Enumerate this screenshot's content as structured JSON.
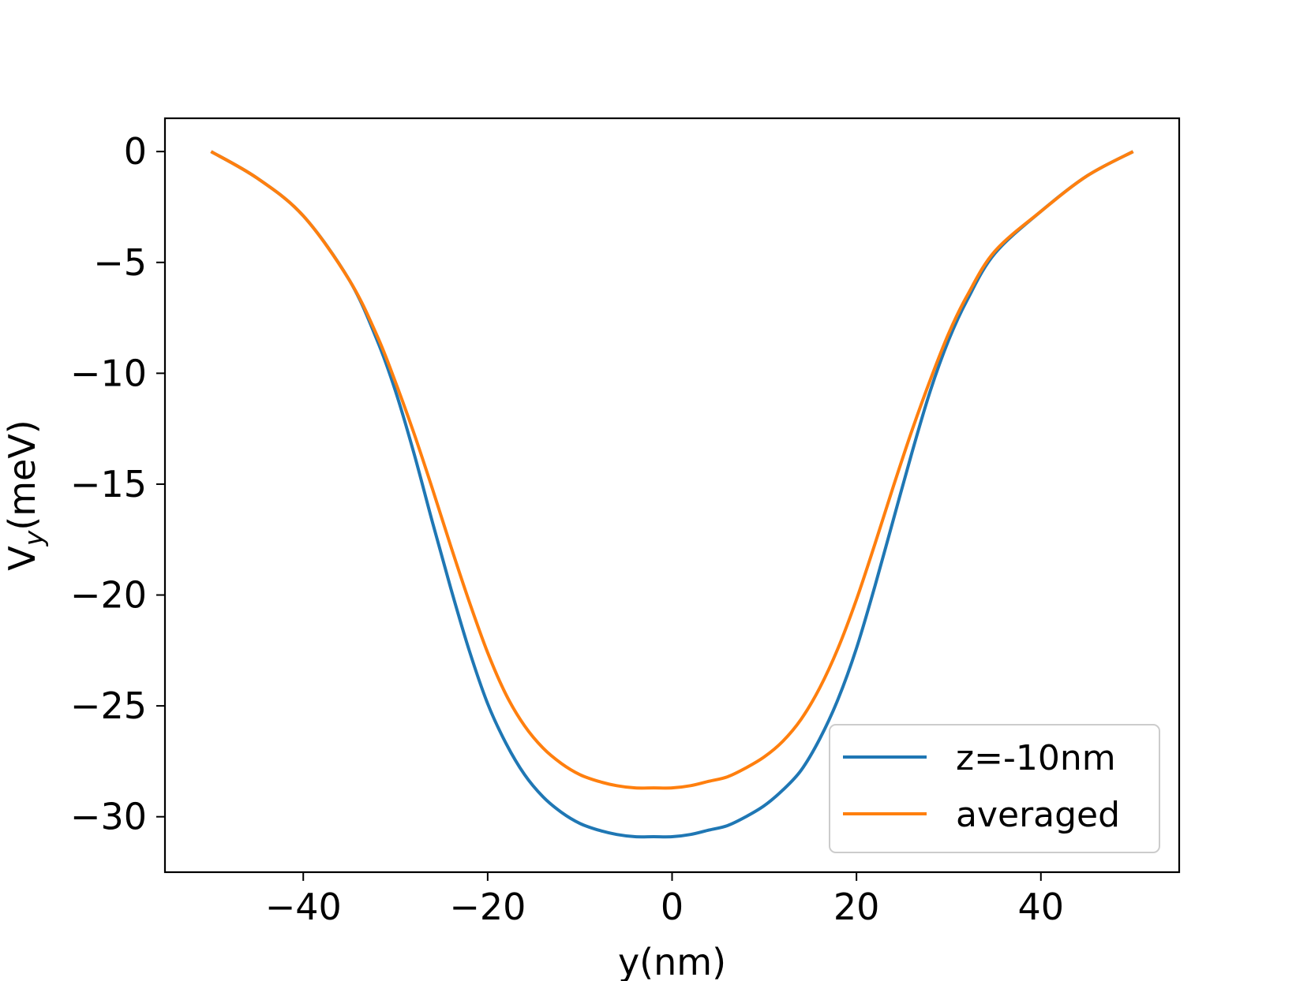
{
  "chart_data": {
    "type": "line",
    "title": "",
    "xlabel": "y(nm)",
    "ylabel": "V",
    "ylabel_sub": "y",
    "ylabel_suffix": "(meV)",
    "xlim": [
      -55,
      55
    ],
    "ylim": [
      -32.5,
      1.5
    ],
    "xticks": [
      -40,
      -20,
      0,
      20,
      40
    ],
    "xtick_labels": [
      "−40",
      "−20",
      "0",
      "20",
      "40"
    ],
    "yticks": [
      0,
      -5,
      -10,
      -15,
      -20,
      -25,
      -30
    ],
    "ytick_labels": [
      "0",
      "−5",
      "−10",
      "−15",
      "−20",
      "−25",
      "−30"
    ],
    "grid": false,
    "legend": "lower-right",
    "x": [
      -50,
      -45,
      -40,
      -35,
      -32,
      -30,
      -28,
      -26,
      -24,
      -22,
      -20,
      -18,
      -16,
      -14,
      -12,
      -10,
      -8,
      -6,
      -4,
      -2,
      0,
      2,
      4,
      6,
      8,
      10,
      12,
      14,
      16,
      18,
      20,
      22,
      24,
      26,
      28,
      30,
      32,
      35,
      40,
      45,
      50
    ],
    "series": [
      {
        "name": "z=-10nm",
        "color": "#1f77b4",
        "values": [
          0,
          -1.2,
          -2.9,
          -5.8,
          -8.5,
          -10.8,
          -13.6,
          -16.7,
          -19.7,
          -22.5,
          -24.9,
          -26.7,
          -28.1,
          -29.1,
          -29.8,
          -30.3,
          -30.6,
          -30.8,
          -30.9,
          -30.9,
          -30.9,
          -30.8,
          -30.6,
          -30.4,
          -30.0,
          -29.5,
          -28.8,
          -27.9,
          -26.5,
          -24.7,
          -22.4,
          -19.6,
          -16.6,
          -13.6,
          -10.8,
          -8.5,
          -6.7,
          -4.6,
          -2.7,
          -1.1,
          0
        ]
      },
      {
        "name": "averaged",
        "color": "#ff7f0e",
        "values": [
          0,
          -1.2,
          -2.9,
          -5.8,
          -8.3,
          -10.4,
          -12.7,
          -15.2,
          -17.8,
          -20.3,
          -22.6,
          -24.5,
          -25.9,
          -26.9,
          -27.6,
          -28.1,
          -28.4,
          -28.6,
          -28.7,
          -28.7,
          -28.7,
          -28.6,
          -28.4,
          -28.2,
          -27.8,
          -27.3,
          -26.6,
          -25.6,
          -24.2,
          -22.4,
          -20.2,
          -17.7,
          -15.1,
          -12.6,
          -10.3,
          -8.2,
          -6.5,
          -4.5,
          -2.7,
          -1.1,
          0
        ]
      }
    ]
  }
}
